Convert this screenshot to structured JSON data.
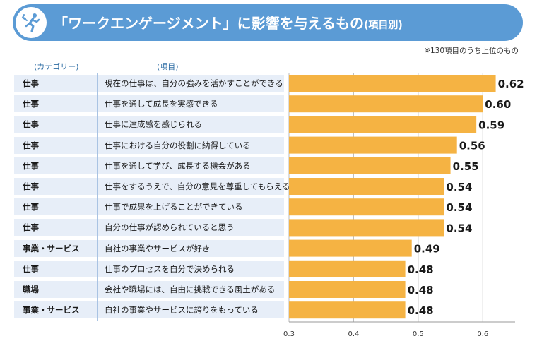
{
  "header": {
    "title_main": "「ワークエンゲージメント」に影響を与えるもの",
    "title_sub": "(項目別)",
    "icon": "running-person-icon",
    "banner_color": "#5b9bd5"
  },
  "note": "※130項目のうち上位のもの",
  "columns": {
    "category": "(カテゴリー)",
    "item": "(項目)"
  },
  "chart_data": {
    "type": "bar",
    "orientation": "horizontal",
    "categories": [
      "現在の仕事は、自分の強みを活かすことができる",
      "仕事を通して成長を実感できる",
      "仕事に達成感を感じられる",
      "仕事における自分の役割に納得している",
      "仕事を通して学び、成長する機会がある",
      "仕事をするうえで、自分の意見を尊重してもらえる",
      "仕事で成果を上げることができている",
      "自分の仕事が認められていると思う",
      "自社の事業やサービスが好き",
      "仕事のプロセスを自分で決められる",
      "会社や職場には、自由に挑戦できる風土がある",
      "自社の事業やサービスに誇りをもっている"
    ],
    "groups": [
      "仕事",
      "仕事",
      "仕事",
      "仕事",
      "仕事",
      "仕事",
      "仕事",
      "仕事",
      "事業・サービス",
      "仕事",
      "職場",
      "事業・サービス"
    ],
    "values": [
      0.62,
      0.6,
      0.59,
      0.56,
      0.55,
      0.54,
      0.54,
      0.54,
      0.49,
      0.48,
      0.48,
      0.48
    ],
    "value_labels": [
      "0.62",
      "0.60",
      "0.59",
      "0.56",
      "0.55",
      "0.54",
      "0.54",
      "0.54",
      "0.49",
      "0.48",
      "0.48",
      "0.48"
    ],
    "xlim": [
      0.3,
      0.65
    ],
    "xticks": [
      "0.3",
      "0.4",
      "0.5",
      "0.6"
    ],
    "xtick_values": [
      0.3,
      0.4,
      0.5,
      0.6
    ],
    "grid": true,
    "bar_color": "#f5b343",
    "row_stripe_color": "#e7eef8"
  }
}
